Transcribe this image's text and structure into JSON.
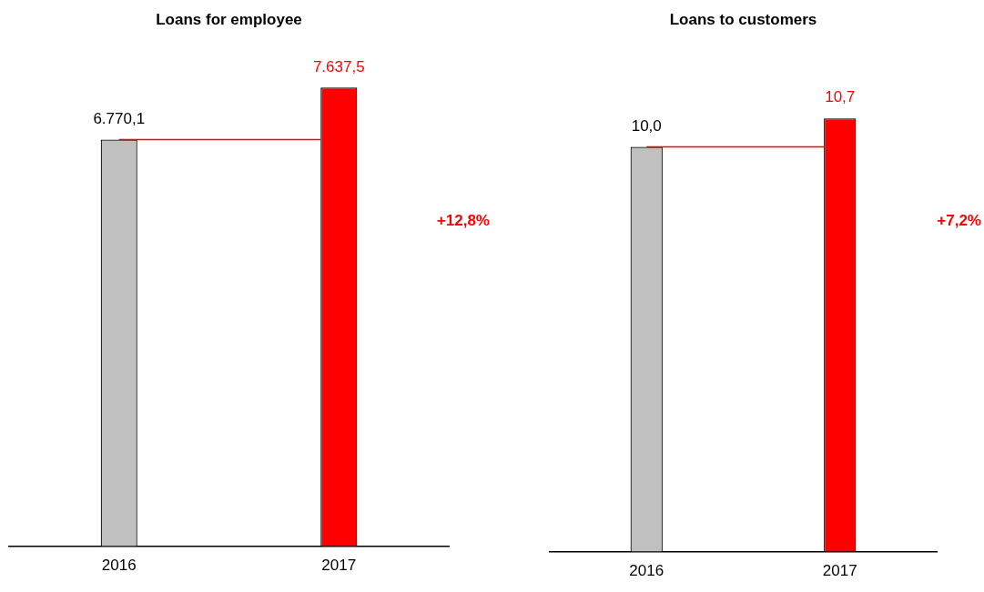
{
  "chart_data": [
    {
      "type": "bar",
      "title": "Loans for employee",
      "categories": [
        "2016",
        "2017"
      ],
      "values": [
        6770.1,
        7637.5
      ],
      "colors": [
        "#c0c0c0",
        "#ff0000"
      ],
      "value_labels": [
        "6.770,1",
        "7.637,5"
      ],
      "tick_labels": "x",
      "grid": false,
      "legend": false,
      "ref_lines": [
        {
          "axis": "y",
          "value": 6770.1,
          "color": "#ff0000"
        }
      ],
      "annotations": [
        "+12,8%"
      ]
    },
    {
      "type": "bar",
      "title": "Loans to customers",
      "categories": [
        "2016",
        "2017"
      ],
      "values": [
        10.0,
        10.7
      ],
      "colors": [
        "#c0c0c0",
        "#ff0000"
      ],
      "value_labels": [
        "10,0",
        "10,7"
      ],
      "tick_labels": "x",
      "grid": false,
      "legend": false,
      "ref_lines": [
        {
          "axis": "y",
          "value": 10.0,
          "color": "#ff0000"
        }
      ],
      "annotations": [
        "+7,2%"
      ]
    }
  ]
}
